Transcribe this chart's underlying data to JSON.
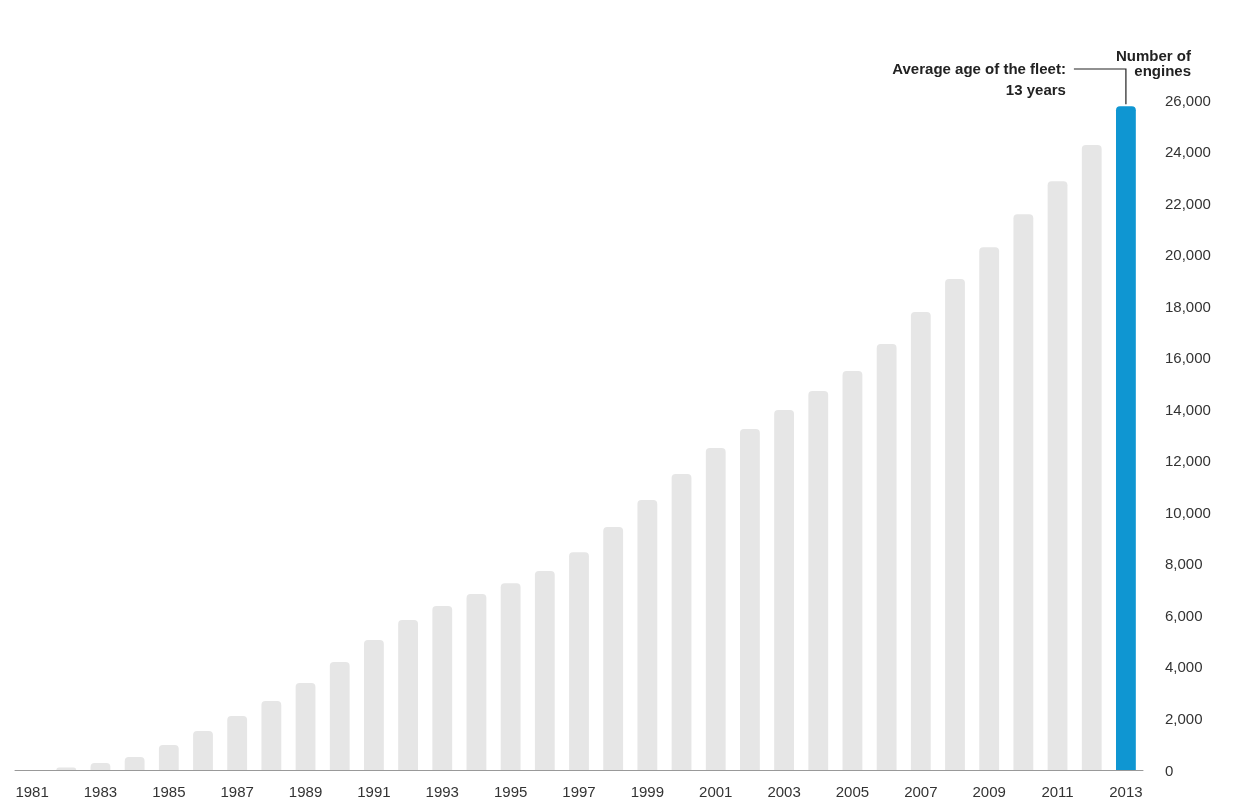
{
  "chart_data": {
    "type": "bar",
    "categories": [
      "1981",
      null,
      "1983",
      null,
      "1985",
      null,
      "1987",
      null,
      "1989",
      null,
      "1991",
      null,
      "1993",
      null,
      "1995",
      null,
      "1997",
      null,
      "1999",
      null,
      "2001",
      null,
      "2003",
      null,
      "2005",
      null,
      "2007",
      null,
      "2009",
      null,
      "2011",
      null,
      "2013"
    ],
    "values": [
      0,
      100,
      270,
      500,
      970,
      1510,
      2100,
      2680,
      3380,
      4190,
      5040,
      5820,
      6360,
      6830,
      7250,
      7720,
      8450,
      9430,
      10480,
      11490,
      12500,
      13230,
      13970,
      14710,
      15480,
      16530,
      17770,
      19050,
      20290,
      21570,
      22850,
      24250,
      25760
    ],
    "colors": [
      "#e6e6e6",
      "#e6e6e6",
      "#e6e6e6",
      "#e6e6e6",
      "#e6e6e6",
      "#e6e6e6",
      "#e6e6e6",
      "#e6e6e6",
      "#e6e6e6",
      "#e6e6e6",
      "#e6e6e6",
      "#e6e6e6",
      "#e6e6e6",
      "#e6e6e6",
      "#e6e6e6",
      "#e6e6e6",
      "#e6e6e6",
      "#e6e6e6",
      "#e6e6e6",
      "#e6e6e6",
      "#e6e6e6",
      "#e6e6e6",
      "#e6e6e6",
      "#e6e6e6",
      "#e6e6e6",
      "#e6e6e6",
      "#e6e6e6",
      "#e6e6e6",
      "#e6e6e6",
      "#e6e6e6",
      "#e6e6e6",
      "#e6e6e6",
      "#0f96d2"
    ],
    "ylabel": "Number of\nengines",
    "ylim": [
      0,
      26000
    ],
    "yticks": [
      0,
      {
        "value": 2000,
        "label": "2,000"
      },
      {
        "value": 4000,
        "label": "4,000"
      },
      {
        "value": 6000,
        "label": "6,000"
      },
      {
        "value": 8000,
        "label": "8,000"
      },
      {
        "value": 10000,
        "label": "10,000"
      },
      {
        "value": 12000,
        "label": "12,000"
      },
      {
        "value": 14000,
        "label": "14,000"
      },
      {
        "value": 16000,
        "label": "16,000"
      },
      {
        "value": 18000,
        "label": "18,000"
      },
      {
        "value": 20000,
        "label": "20,000"
      },
      {
        "value": 22000,
        "label": "22,000"
      },
      {
        "value": 24000,
        "label": "24,000"
      },
      {
        "value": 26000,
        "label": "26,000"
      }
    ],
    "annotations": [
      {
        "text": "Average age of the fleet:\n13 years",
        "x": "2013",
        "y": 25760
      }
    ],
    "grid": false
  }
}
